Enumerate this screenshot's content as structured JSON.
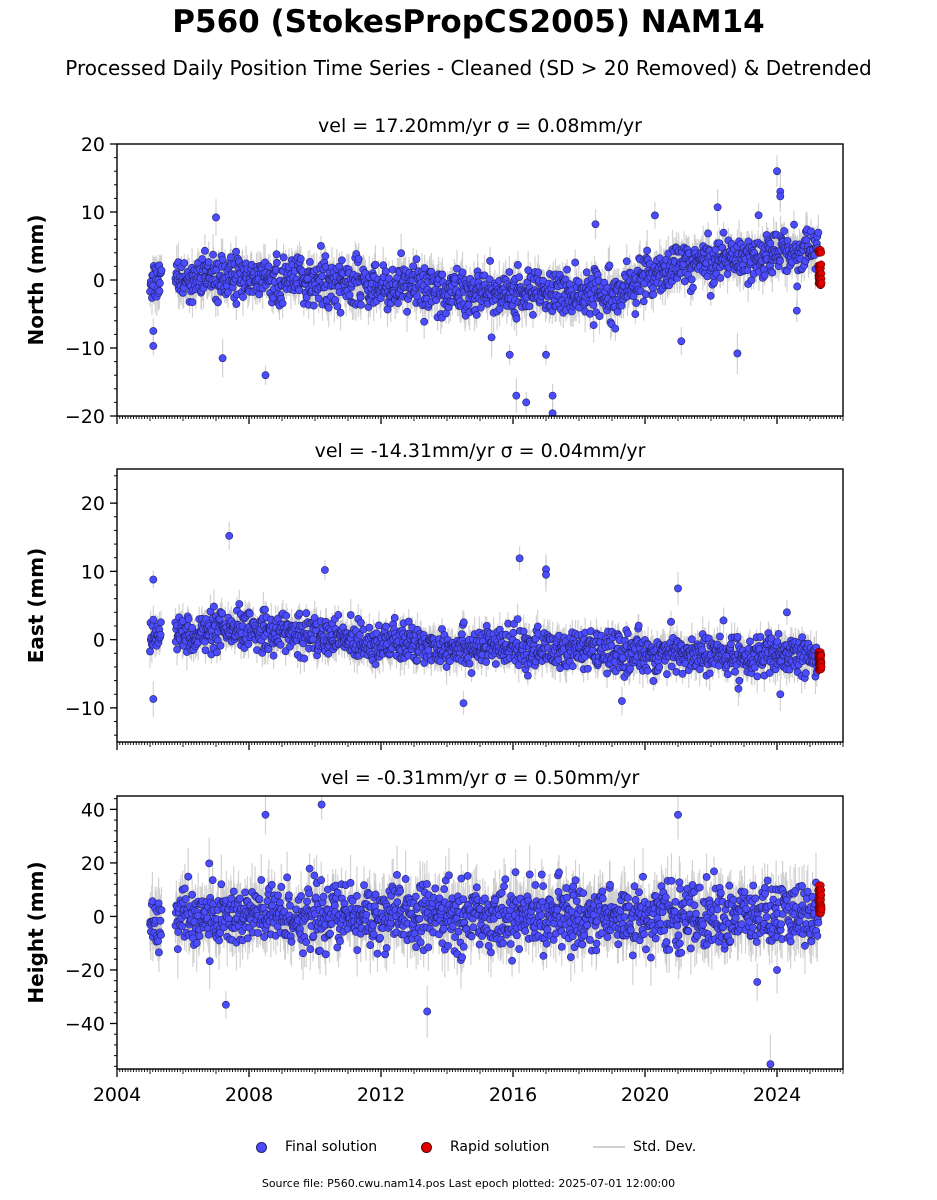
{
  "title": "P560 (StokesPropCS2005) NAM14",
  "subtitle": "Processed Daily Position Time Series - Cleaned (SD > 20 Removed) & Detrended",
  "source_note": "Source file: P560.cwu.nam14.pos  Last epoch plotted: 2025-07-01 12:00:00",
  "legend": {
    "final": "Final solution",
    "rapid": "Rapid solution",
    "std": "Std. Dev."
  },
  "colors": {
    "final": "#4b4bff",
    "final_edge": "#222266",
    "rapid": "#e00000",
    "std": "#c8c8c8"
  },
  "chart_data": [
    {
      "type": "scatter",
      "panel": "north",
      "title": "vel = 17.20mm/yr   σ = 0.08mm/yr",
      "ylabel": "North (mm)",
      "xlim": [
        2004.0,
        2026.0
      ],
      "ylim": [
        -20,
        20
      ],
      "yticks": [
        -20,
        -10,
        0,
        10,
        20
      ],
      "xticks": [
        2004,
        2008,
        2012,
        2016,
        2020,
        2024
      ],
      "show_xticklabels": false,
      "data_start": 2005.0,
      "data_end": 2025.25,
      "rapid_start": 2025.25,
      "rapid_end": 2025.5,
      "trend_x": [
        2005.0,
        2008.0,
        2012.0,
        2016.0,
        2018.0,
        2019.3,
        2020.5,
        2022.0,
        2024.0,
        2025.3
      ],
      "trend_y": [
        0,
        0.3,
        -0.8,
        -2.0,
        -2.0,
        -1.5,
        1.5,
        3.0,
        4.0,
        4.5
      ],
      "noise": 2.2,
      "rapid_y": [
        4.3,
        2.0,
        1.0,
        0.0,
        -0.5
      ],
      "outliers": [
        {
          "x": 2005.1,
          "y": -9.7
        },
        {
          "x": 2005.1,
          "y": -7.5
        },
        {
          "x": 2007.0,
          "y": 9.2
        },
        {
          "x": 2007.2,
          "y": -11.5
        },
        {
          "x": 2008.5,
          "y": -14.0
        },
        {
          "x": 2015.9,
          "y": -11.0
        },
        {
          "x": 2016.1,
          "y": -17.0
        },
        {
          "x": 2016.4,
          "y": -18.0
        },
        {
          "x": 2017.2,
          "y": -19.6
        },
        {
          "x": 2017.2,
          "y": -17.0
        },
        {
          "x": 2017.0,
          "y": -11.0
        },
        {
          "x": 2018.5,
          "y": 8.2
        },
        {
          "x": 2020.3,
          "y": 9.5
        },
        {
          "x": 2021.1,
          "y": -9.0
        },
        {
          "x": 2022.2,
          "y": 10.7
        },
        {
          "x": 2022.8,
          "y": -10.8
        },
        {
          "x": 2024.0,
          "y": 16.0
        },
        {
          "x": 2024.1,
          "y": 13.0
        },
        {
          "x": 2024.1,
          "y": 12.3
        },
        {
          "x": 2024.6,
          "y": -4.5
        }
      ]
    },
    {
      "type": "scatter",
      "panel": "east",
      "title": "vel = -14.31mm/yr   σ = 0.04mm/yr",
      "ylabel": "East (mm)",
      "xlim": [
        2004.0,
        2026.0
      ],
      "ylim": [
        -15,
        25
      ],
      "yticks": [
        -10,
        0,
        10,
        20
      ],
      "xticks": [
        2004,
        2008,
        2012,
        2016,
        2020,
        2024
      ],
      "show_xticklabels": false,
      "data_start": 2005.0,
      "data_end": 2025.25,
      "rapid_start": 2025.25,
      "rapid_end": 2025.5,
      "trend_x": [
        2005.0,
        2007.0,
        2008.5,
        2010.0,
        2013.0,
        2016.0,
        2020.0,
        2024.0,
        2025.3
      ],
      "trend_y": [
        0.5,
        1.0,
        1.5,
        0.5,
        -0.8,
        -1.2,
        -2.0,
        -2.5,
        -2.5
      ],
      "noise": 1.9,
      "rapid_y": [
        -2.0,
        -2.5,
        -3.0,
        -3.5,
        -4.2
      ],
      "outliers": [
        {
          "x": 2005.1,
          "y": 8.8
        },
        {
          "x": 2005.1,
          "y": -8.7
        },
        {
          "x": 2007.4,
          "y": 15.2
        },
        {
          "x": 2010.3,
          "y": 10.2
        },
        {
          "x": 2014.5,
          "y": -9.3
        },
        {
          "x": 2016.2,
          "y": 11.9
        },
        {
          "x": 2017.0,
          "y": 10.3
        },
        {
          "x": 2017.0,
          "y": 9.5
        },
        {
          "x": 2019.3,
          "y": -9.0
        },
        {
          "x": 2021.0,
          "y": 7.5
        },
        {
          "x": 2024.1,
          "y": -8.0
        },
        {
          "x": 2024.3,
          "y": 4.0
        }
      ]
    },
    {
      "type": "scatter",
      "panel": "height",
      "title": "vel = -0.31mm/yr   σ = 0.50mm/yr",
      "ylabel": "Height (mm)",
      "xlim": [
        2004.0,
        2026.0
      ],
      "ylim": [
        -57,
        45
      ],
      "yticks": [
        -40,
        -20,
        0,
        20,
        40
      ],
      "xticks": [
        2004,
        2008,
        2012,
        2016,
        2020,
        2024
      ],
      "show_xticklabels": true,
      "data_start": 2005.0,
      "data_end": 2025.25,
      "rapid_start": 2025.25,
      "rapid_end": 2025.5,
      "trend_x": [
        2005.0,
        2025.3
      ],
      "trend_y": [
        0.0,
        0.0
      ],
      "noise": 8.0,
      "rapid_y": [
        10.5,
        7.5,
        5.0,
        3.5,
        2.0
      ],
      "outliers": [
        {
          "x": 2007.3,
          "y": -33.0
        },
        {
          "x": 2008.5,
          "y": 38.0
        },
        {
          "x": 2010.2,
          "y": 41.8
        },
        {
          "x": 2013.4,
          "y": -35.5
        },
        {
          "x": 2021.0,
          "y": 38.0
        },
        {
          "x": 2023.4,
          "y": -24.5
        },
        {
          "x": 2023.8,
          "y": -55.2
        },
        {
          "x": 2024.0,
          "y": -20.0
        }
      ]
    }
  ]
}
